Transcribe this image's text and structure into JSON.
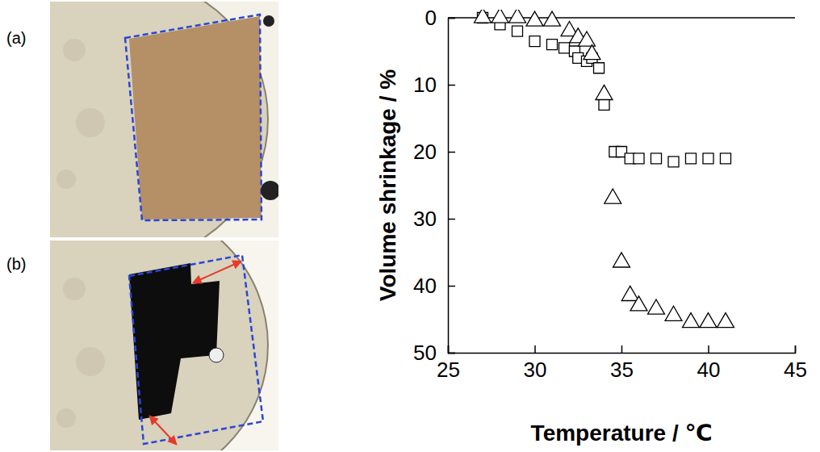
{
  "photos": {
    "labels": [
      "(a)",
      "(b)"
    ]
  },
  "chart_data": {
    "type": "scatter",
    "xlabel": "Temperature / ℃",
    "ylabel": "Volume shrinkage / %",
    "xlim": [
      25,
      45
    ],
    "xticks": [
      25,
      30,
      35,
      40,
      45
    ],
    "ylim": [
      50,
      0
    ],
    "yticks": [
      0,
      10,
      20,
      30,
      40,
      50
    ],
    "grid": false,
    "series": [
      {
        "marker": "square",
        "color": "#000000",
        "x": [
          27,
          28,
          29,
          30,
          31,
          31.7,
          32.3,
          32.5,
          33,
          33.3,
          33.7,
          34,
          34.6,
          35,
          35.5,
          36,
          37,
          38,
          39,
          40,
          41
        ],
        "values": [
          0,
          1,
          2,
          3.5,
          4,
          4.5,
          5,
          6,
          6.5,
          6,
          7.5,
          13,
          20,
          20,
          21,
          21,
          21,
          21.5,
          21,
          21,
          21
        ]
      },
      {
        "marker": "triangle",
        "color": "#000000",
        "x": [
          27,
          28,
          29,
          30,
          31,
          32,
          32.5,
          33,
          33.3,
          34,
          34.5,
          35,
          35.5,
          36,
          37,
          38,
          39,
          40,
          41
        ],
        "values": [
          0,
          0,
          0,
          0.5,
          0.5,
          2,
          3,
          3.5,
          5.5,
          11.5,
          27,
          36.5,
          41.5,
          43,
          43.5,
          44.5,
          45.5,
          45.5,
          45.5
        ]
      }
    ]
  }
}
